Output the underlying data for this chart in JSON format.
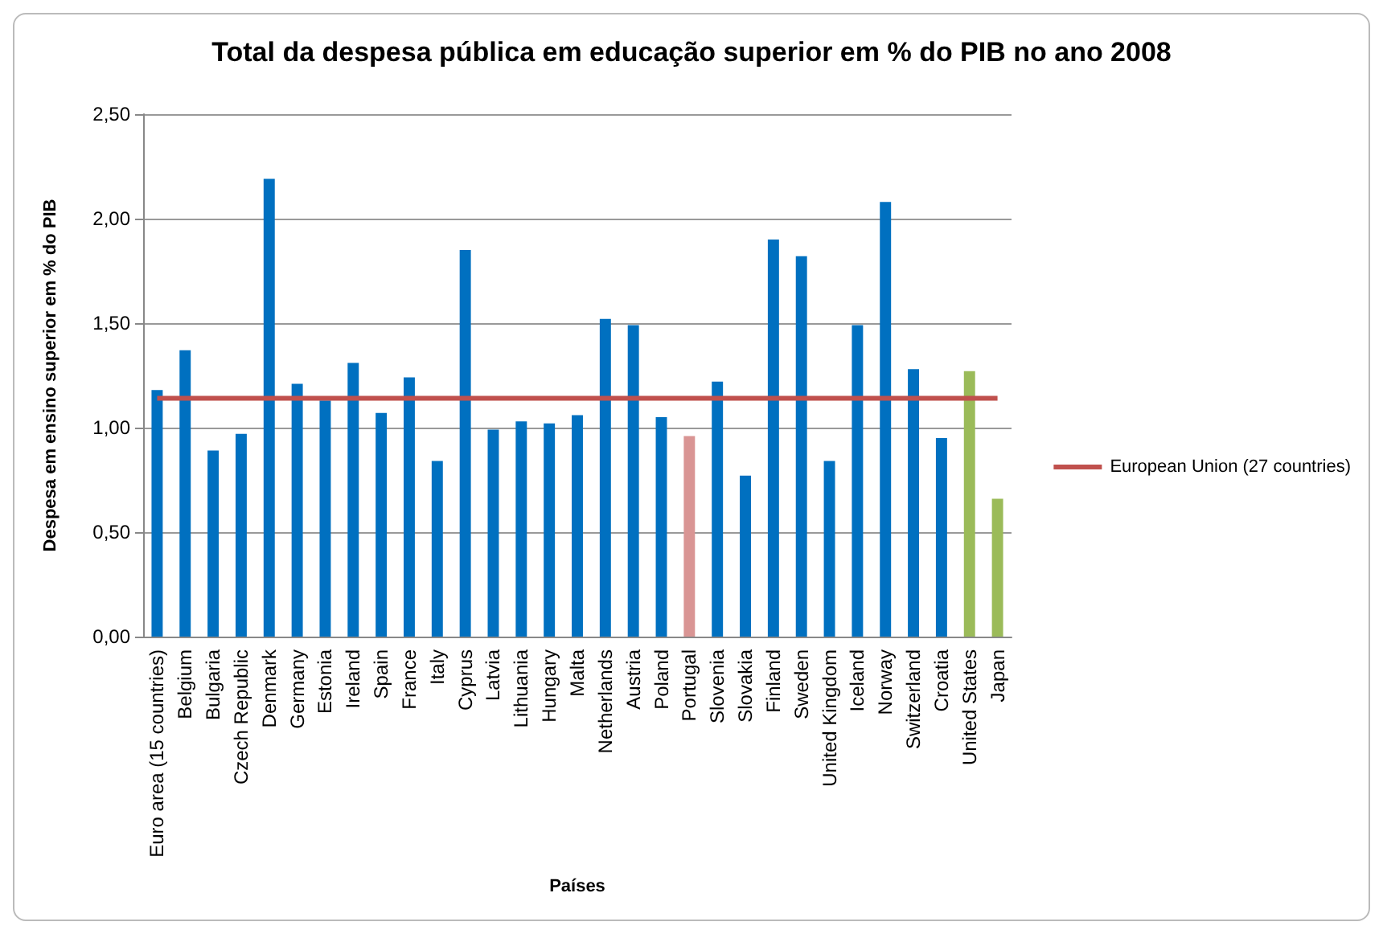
{
  "chart_data": {
    "type": "bar",
    "title": "Total da despesa pública em educação superior em % do PIB no ano 2008",
    "xlabel": "Países",
    "ylabel": "Despesa em ensino superior em % do PIB",
    "categories": [
      "Euro area (15 countries)",
      "Belgium",
      "Bulgaria",
      "Czech Republic",
      "Denmark",
      "Germany",
      "Estonia",
      "Ireland",
      "Spain",
      "France",
      "Italy",
      "Cyprus",
      "Latvia",
      "Lithuania",
      "Hungary",
      "Malta",
      "Netherlands",
      "Austria",
      "Poland",
      "Portugal",
      "Slovenia",
      "Slovakia",
      "Finland",
      "Sweden",
      "United Kingdom",
      "Iceland",
      "Norway",
      "Switzerland",
      "Croatia",
      "United States",
      "Japan"
    ],
    "series": [
      {
        "values": [
          1.18,
          1.37,
          0.89,
          0.97,
          2.19,
          1.21,
          1.13,
          1.31,
          1.07,
          1.24,
          0.84,
          1.85,
          0.99,
          1.03,
          1.02,
          1.06,
          1.52,
          1.49,
          1.05,
          0.96,
          1.22,
          0.77,
          1.9,
          1.82,
          0.84,
          1.49,
          2.08,
          1.28,
          0.95,
          1.27,
          0.66
        ],
        "colors": [
          "#0070c0",
          "#0070c0",
          "#0070c0",
          "#0070c0",
          "#0070c0",
          "#0070c0",
          "#0070c0",
          "#0070c0",
          "#0070c0",
          "#0070c0",
          "#0070c0",
          "#0070c0",
          "#0070c0",
          "#0070c0",
          "#0070c0",
          "#0070c0",
          "#0070c0",
          "#0070c0",
          "#0070c0",
          "#d99594",
          "#0070c0",
          "#0070c0",
          "#0070c0",
          "#0070c0",
          "#0070c0",
          "#0070c0",
          "#0070c0",
          "#0070c0",
          "#0070c0",
          "#9bbb59",
          "#9bbb59"
        ]
      },
      {
        "type": "line",
        "name": "European Union (27 countries)",
        "color": "#c0504d",
        "values": [
          1.14,
          1.14,
          1.14,
          1.14,
          1.14,
          1.14,
          1.14,
          1.14,
          1.14,
          1.14,
          1.14,
          1.14,
          1.14,
          1.14,
          1.14,
          1.14,
          1.14,
          1.14,
          1.14,
          1.14,
          1.14,
          1.14,
          1.14,
          1.14,
          1.14,
          1.14,
          1.14,
          1.14,
          1.14,
          1.14,
          1.14
        ]
      }
    ],
    "ylim": [
      0,
      2.5
    ],
    "yticks": [
      {
        "value": 0,
        "label": "0,00"
      },
      {
        "value": 0.5,
        "label": "0,50"
      },
      {
        "value": 1,
        "label": "1,00"
      },
      {
        "value": 1.5,
        "label": "1,50"
      },
      {
        "value": 2,
        "label": "2,00"
      },
      {
        "value": 2.5,
        "label": "2,50"
      }
    ],
    "grid": "y",
    "legend": "right",
    "marker": "none"
  }
}
